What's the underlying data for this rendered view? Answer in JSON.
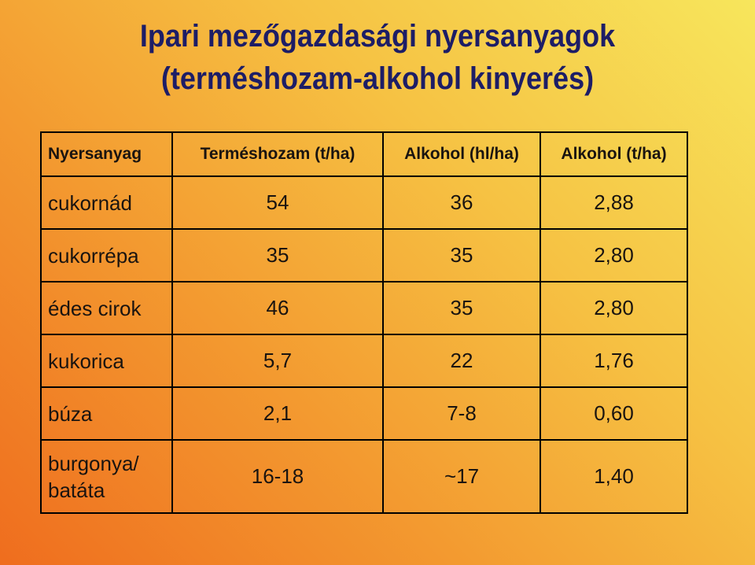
{
  "title": [
    "Ipari mezőgazdasági nyersanyagok",
    "(terméshozam-alkohol kinyerés)"
  ],
  "table": {
    "header": [
      "Nyersanyag",
      "Terméshozam (t/ha)",
      "Alkohol (hl/ha)",
      "Alkohol (t/ha)"
    ],
    "rows": [
      [
        "cukornád",
        "54",
        "36",
        "2,88"
      ],
      [
        "cukorrépa",
        "35",
        "35",
        "2,80"
      ],
      [
        "édes cirok",
        "46",
        "35",
        "2,80"
      ],
      [
        "kukorica",
        "5,7",
        "22",
        "1,76"
      ],
      [
        "búza",
        "2,1",
        "7-8",
        "0,60"
      ],
      [
        "burgonya/ batáta",
        "16-18",
        "~17",
        "1,40"
      ]
    ]
  }
}
